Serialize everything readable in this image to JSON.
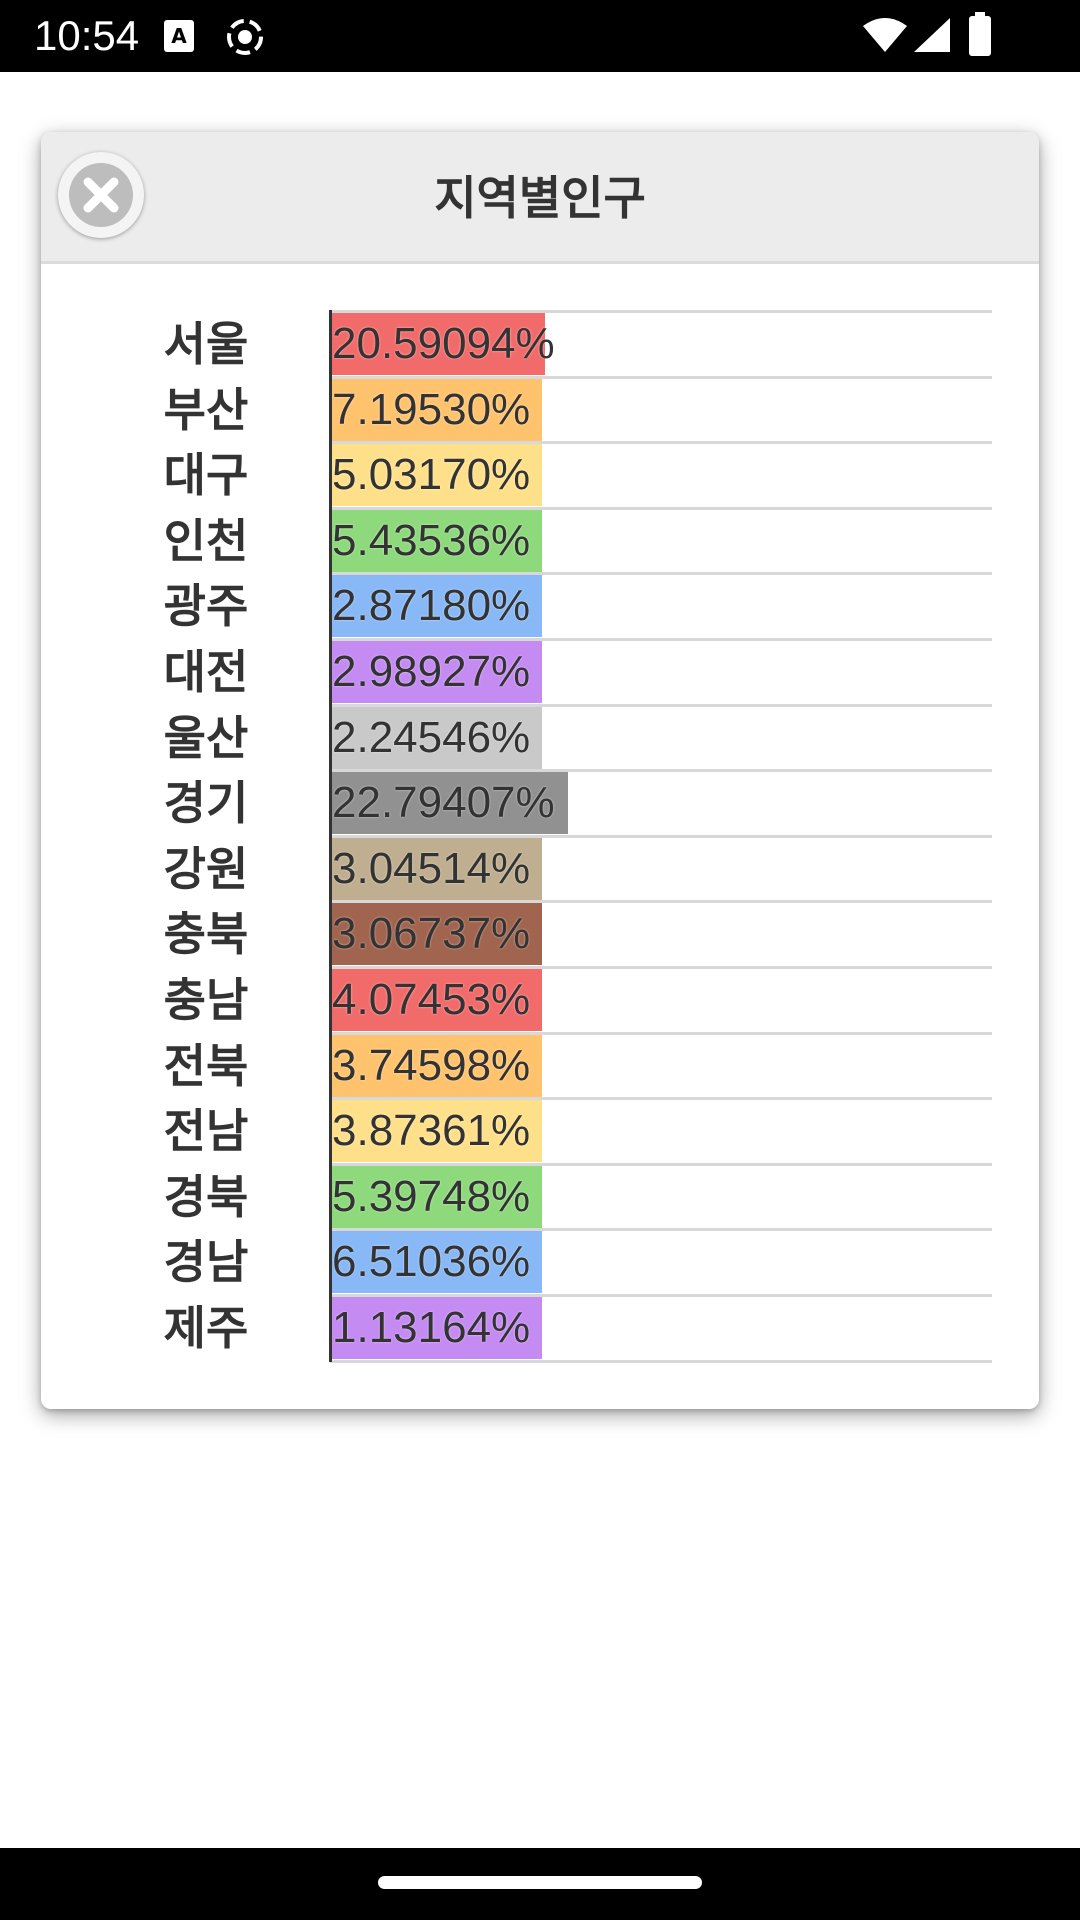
{
  "status_bar": {
    "time": "10:54",
    "icons": [
      "a-notification-icon",
      "screen-record-icon",
      "wifi-icon",
      "signal-icon",
      "battery-icon"
    ]
  },
  "dialog": {
    "title": "지역별인구",
    "close_icon": "close-circle-icon"
  },
  "chart_data": {
    "type": "bar",
    "orientation": "horizontal",
    "title": "지역별인구",
    "categories": [
      "서울",
      "부산",
      "대구",
      "인천",
      "광주",
      "대전",
      "울산",
      "경기",
      "강원",
      "충북",
      "충남",
      "전북",
      "전남",
      "경북",
      "경남",
      "제주"
    ],
    "values": [
      20.59094,
      7.1953,
      5.0317,
      5.43536,
      2.8718,
      2.98927,
      2.24546,
      22.79407,
      3.04514,
      3.06737,
      4.07453,
      3.74598,
      3.87361,
      5.39748,
      6.51036,
      1.13164
    ],
    "value_labels": [
      "20.59094%",
      "7.19530%",
      "5.03170%",
      "5.43536%",
      "2.87180%",
      "2.98927%",
      "2.24546%",
      "22.79407%",
      "3.04514%",
      "3.06737%",
      "4.07453%",
      "3.74598%",
      "3.87361%",
      "5.39748%",
      "6.51036%",
      "1.13164%"
    ],
    "colors": [
      "#f26b6b",
      "#ffc36e",
      "#ffe08a",
      "#8ed97c",
      "#88b8f5",
      "#c48bf2",
      "#c9c9c9",
      "#919191",
      "#bfae8f",
      "#a0644f",
      "#f26b6b",
      "#ffc36e",
      "#ffe08a",
      "#8ed97c",
      "#88b8f5",
      "#c48bf2"
    ],
    "grid": true,
    "legend": "none"
  }
}
